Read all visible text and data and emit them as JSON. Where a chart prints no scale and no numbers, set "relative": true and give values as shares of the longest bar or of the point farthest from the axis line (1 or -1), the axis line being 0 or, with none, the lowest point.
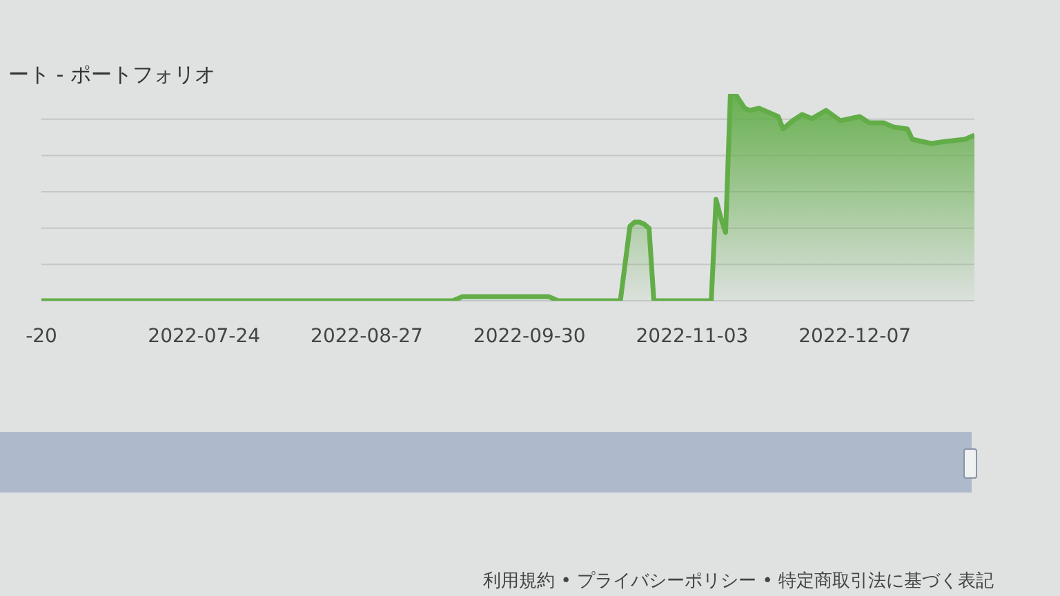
{
  "chart_data": {
    "type": "area",
    "title": "ート - ポートフォリオ",
    "x": [
      "2022-06-20",
      "2022-09-14",
      "2022-09-16",
      "2022-10-04",
      "2022-10-06",
      "2022-10-19",
      "2022-10-20",
      "2022-10-21",
      "2022-10-22",
      "2022-10-23",
      "2022-10-24",
      "2022-10-25",
      "2022-10-26",
      "2022-11-07",
      "2022-11-08",
      "2022-11-09",
      "2022-11-10",
      "2022-11-11",
      "2022-11-12",
      "2022-11-14",
      "2022-11-15",
      "2022-11-17",
      "2022-11-19",
      "2022-11-21",
      "2022-11-22",
      "2022-11-24",
      "2022-11-26",
      "2022-11-28",
      "2022-12-01",
      "2022-12-04",
      "2022-12-06",
      "2022-12-08",
      "2022-12-10",
      "2022-12-13",
      "2022-12-15",
      "2022-12-18",
      "2022-12-19",
      "2022-12-23",
      "2022-12-26",
      "2022-12-30",
      "2023-01-01"
    ],
    "values": [
      0,
      0,
      0.02,
      0.02,
      0,
      0,
      0.18,
      0.36,
      0.38,
      0.38,
      0.37,
      0.35,
      0,
      0,
      0.49,
      0.4,
      0.33,
      1,
      1,
      0.93,
      0.92,
      0.93,
      0.91,
      0.89,
      0.83,
      0.87,
      0.9,
      0.88,
      0.92,
      0.87,
      0.88,
      0.89,
      0.86,
      0.86,
      0.84,
      0.83,
      0.78,
      0.76,
      0.77,
      0.78,
      0.8
    ],
    "color": "#62ad48",
    "relative": true,
    "xlim": [
      "2022-06-20",
      "2023-01-01"
    ],
    "xticks": [
      {
        "value": "2022-06-20",
        "label": "-20"
      },
      "2022-07-24",
      "2022-08-27",
      "2022-09-30",
      "2022-11-03",
      "2022-12-07"
    ],
    "grid": "y",
    "tick_labels": "x",
    "annotations": [
      "利用規約 • プライバシーポリシー • 特定商取引法に基づく表記"
    ]
  }
}
